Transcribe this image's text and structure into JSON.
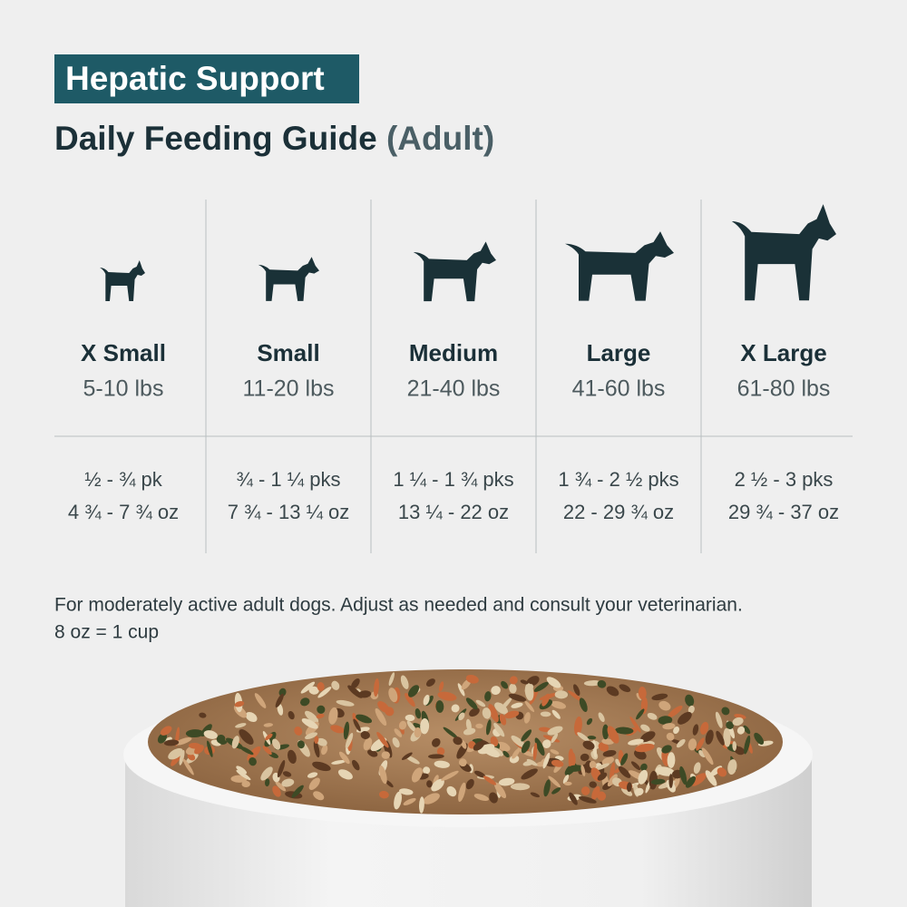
{
  "badge": "Hepatic Support",
  "title": "Daily Feeding Guide",
  "title_suffix": "(Adult)",
  "columns": [
    {
      "size": "X Small",
      "weight": "5-10 lbs",
      "packs": "½ - ¾ pk",
      "ounces": "4 ¾ - 7 ¾ oz"
    },
    {
      "size": "Small",
      "weight": "11-20 lbs",
      "packs": "¾ - 1 ¼ pks",
      "ounces": "7 ¾ - 13 ¼ oz"
    },
    {
      "size": "Medium",
      "weight": "21-40 lbs",
      "packs": "1 ¼ - 1 ¾ pks",
      "ounces": "13 ¼ - 22 oz"
    },
    {
      "size": "Large",
      "weight": "41-60 lbs",
      "packs": "1 ¾ - 2 ½ pks",
      "ounces": "22 - 29 ¾ oz"
    },
    {
      "size": "X Large",
      "weight": "61-80 lbs",
      "packs": "2 ½ - 3 pks",
      "ounces": "29 ¾ - 37 oz"
    }
  ],
  "footnote": [
    "For moderately active adult dogs. Adjust as needed and consult your veterinarian.",
    "8 oz = 1 cup"
  ]
}
